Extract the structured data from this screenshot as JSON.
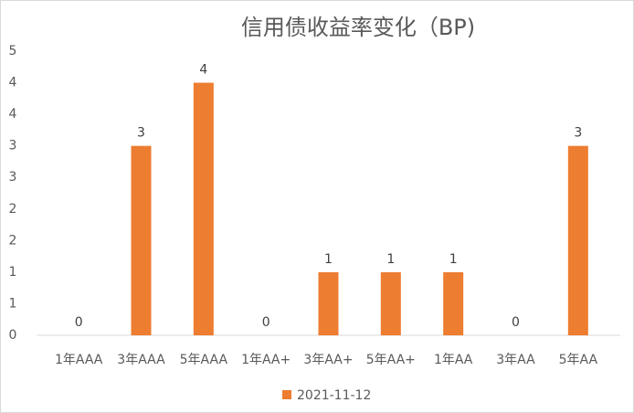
{
  "chart_data": {
    "type": "bar",
    "title": "信用债收益率变化（BP)",
    "categories": [
      "1年AAA",
      "3年AAA",
      "5年AAA",
      "1年AA+",
      "3年AA+",
      "5年AA+",
      "1年AA",
      "3年AA",
      "5年AA"
    ],
    "series": [
      {
        "name": "2021-11-12",
        "color": "#ed7d31",
        "values": [
          0,
          3,
          4,
          0,
          1,
          1,
          1,
          0,
          3
        ]
      }
    ],
    "ylim": [
      0,
      4.5
    ],
    "yticks": [
      0,
      {
        "value": 0.5,
        "label": "1"
      },
      1,
      {
        "value": 1.5,
        "label": "2"
      },
      2,
      {
        "value": 2.5,
        "label": "3"
      },
      3,
      {
        "value": 3.5,
        "label": "4"
      },
      4,
      {
        "value": 4.5,
        "label": "5"
      }
    ],
    "grid": false,
    "legend": "bottom"
  }
}
